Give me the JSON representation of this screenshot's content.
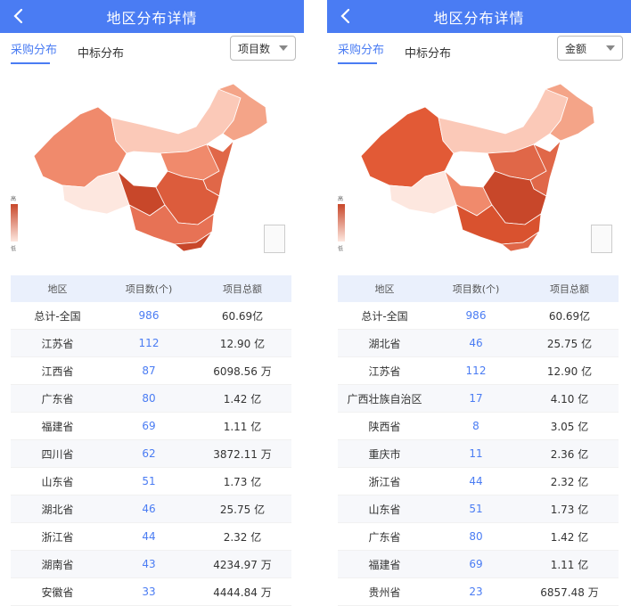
{
  "panels": [
    {
      "header": {
        "title": "地区分布详情",
        "back_icon": "chevron-left-icon"
      },
      "tabs": {
        "active": "采购分布",
        "inactive": "中标分布"
      },
      "dropdown": {
        "value": "项目数"
      },
      "legend": {
        "high": "高",
        "low": "低"
      },
      "table": {
        "headers": [
          "地区",
          "项目数(个)",
          "项目总额"
        ],
        "rows": [
          {
            "region": "总计-全国",
            "count": "986",
            "amount": "60.69亿"
          },
          {
            "region": "江苏省",
            "count": "112",
            "amount": "12.90 亿"
          },
          {
            "region": "江西省",
            "count": "87",
            "amount": "6098.56 万"
          },
          {
            "region": "广东省",
            "count": "80",
            "amount": "1.42 亿"
          },
          {
            "region": "福建省",
            "count": "69",
            "amount": "1.11 亿"
          },
          {
            "region": "四川省",
            "count": "62",
            "amount": "3872.11 万"
          },
          {
            "region": "山东省",
            "count": "51",
            "amount": "1.73 亿"
          },
          {
            "region": "湖北省",
            "count": "46",
            "amount": "25.75 亿"
          },
          {
            "region": "浙江省",
            "count": "44",
            "amount": "2.32 亿"
          },
          {
            "region": "湖南省",
            "count": "43",
            "amount": "4234.97 万"
          },
          {
            "region": "安徽省",
            "count": "33",
            "amount": "4444.84 万"
          }
        ]
      }
    },
    {
      "header": {
        "title": "地区分布详情",
        "back_icon": "chevron-left-icon"
      },
      "tabs": {
        "active": "采购分布",
        "inactive": "中标分布"
      },
      "dropdown": {
        "value": "金额"
      },
      "legend": {
        "high": "高",
        "low": "低"
      },
      "table": {
        "headers": [
          "地区",
          "项目数(个)",
          "项目总额"
        ],
        "rows": [
          {
            "region": "总计-全国",
            "count": "986",
            "amount": "60.69亿"
          },
          {
            "region": "湖北省",
            "count": "46",
            "amount": "25.75 亿"
          },
          {
            "region": "江苏省",
            "count": "112",
            "amount": "12.90 亿"
          },
          {
            "region": "广西壮族自治区",
            "count": "17",
            "amount": "4.10 亿"
          },
          {
            "region": "陕西省",
            "count": "8",
            "amount": "3.05 亿"
          },
          {
            "region": "重庆市",
            "count": "11",
            "amount": "2.36 亿"
          },
          {
            "region": "浙江省",
            "count": "44",
            "amount": "2.32 亿"
          },
          {
            "region": "山东省",
            "count": "51",
            "amount": "1.73 亿"
          },
          {
            "region": "广东省",
            "count": "80",
            "amount": "1.42 亿"
          },
          {
            "region": "福建省",
            "count": "69",
            "amount": "1.11 亿"
          },
          {
            "region": "贵州省",
            "count": "23",
            "amount": "6857.48 万"
          }
        ]
      }
    }
  ],
  "colors": {
    "accent": "#4a7cf3",
    "map_high": "#c8472a",
    "map_mid": "#f08a6c",
    "map_low": "#fde7df"
  }
}
